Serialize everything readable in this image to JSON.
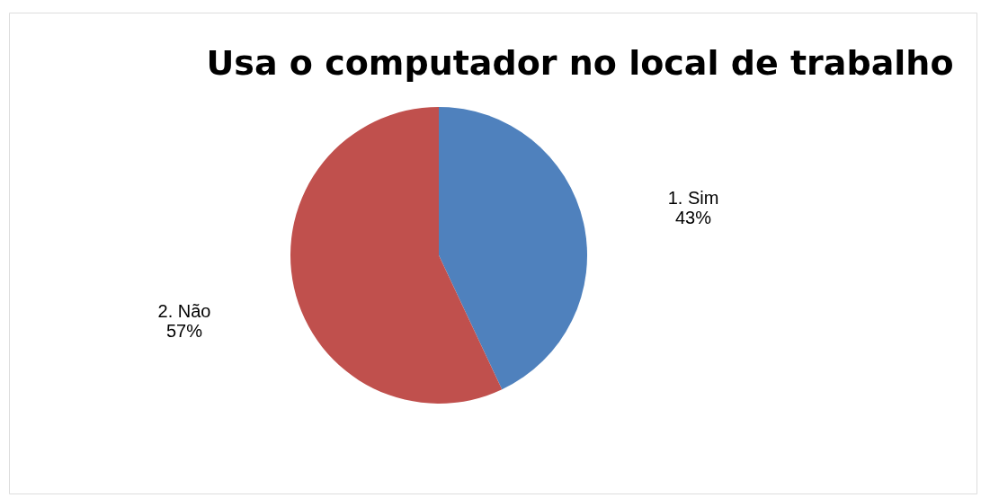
{
  "chart_data": {
    "type": "pie",
    "title": "Usa o computador no local de trabalho",
    "categories": [
      "1. Sim",
      "2. Não"
    ],
    "values": [
      43,
      57
    ],
    "colors": [
      "#4f81bd",
      "#c0504d"
    ],
    "value_labels": [
      "43%",
      "57%"
    ]
  }
}
